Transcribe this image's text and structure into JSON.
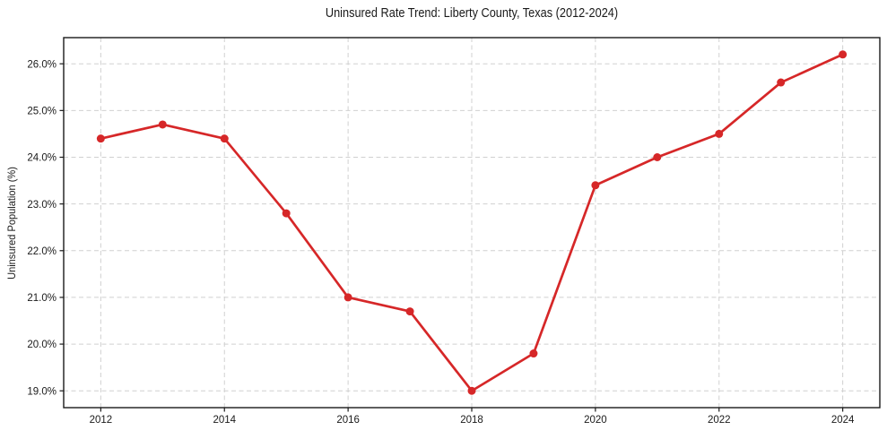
{
  "chart_data": {
    "type": "line",
    "title": "Uninsured Rate Trend: Liberty County, Texas (2012-2024)",
    "xlabel": "",
    "ylabel": "Uninsured Population (%)",
    "series_name": "Uninsured rate",
    "x": [
      2012,
      2013,
      2014,
      2015,
      2016,
      2017,
      2018,
      2019,
      2020,
      2021,
      2022,
      2023,
      2024
    ],
    "values": [
      24.4,
      24.7,
      24.4,
      22.8,
      21.0,
      20.7,
      19.0,
      19.8,
      23.4,
      24.0,
      24.5,
      25.6,
      26.2
    ],
    "x_ticks": [
      2012,
      2014,
      2016,
      2018,
      2020,
      2022,
      2024
    ],
    "y_ticks": [
      19.0,
      20.0,
      21.0,
      22.0,
      23.0,
      24.0,
      25.0,
      26.0
    ],
    "y_tick_suffix": "%",
    "xlim": [
      2011.4,
      2024.6
    ],
    "ylim": [
      18.64,
      26.56
    ],
    "grid": true,
    "legend": "none",
    "colors": {
      "line": "#d62728",
      "marker": "#d62728",
      "grid": "#d0d0d0",
      "axis": "#1a1a1a",
      "text": "#1a1a1a"
    }
  }
}
